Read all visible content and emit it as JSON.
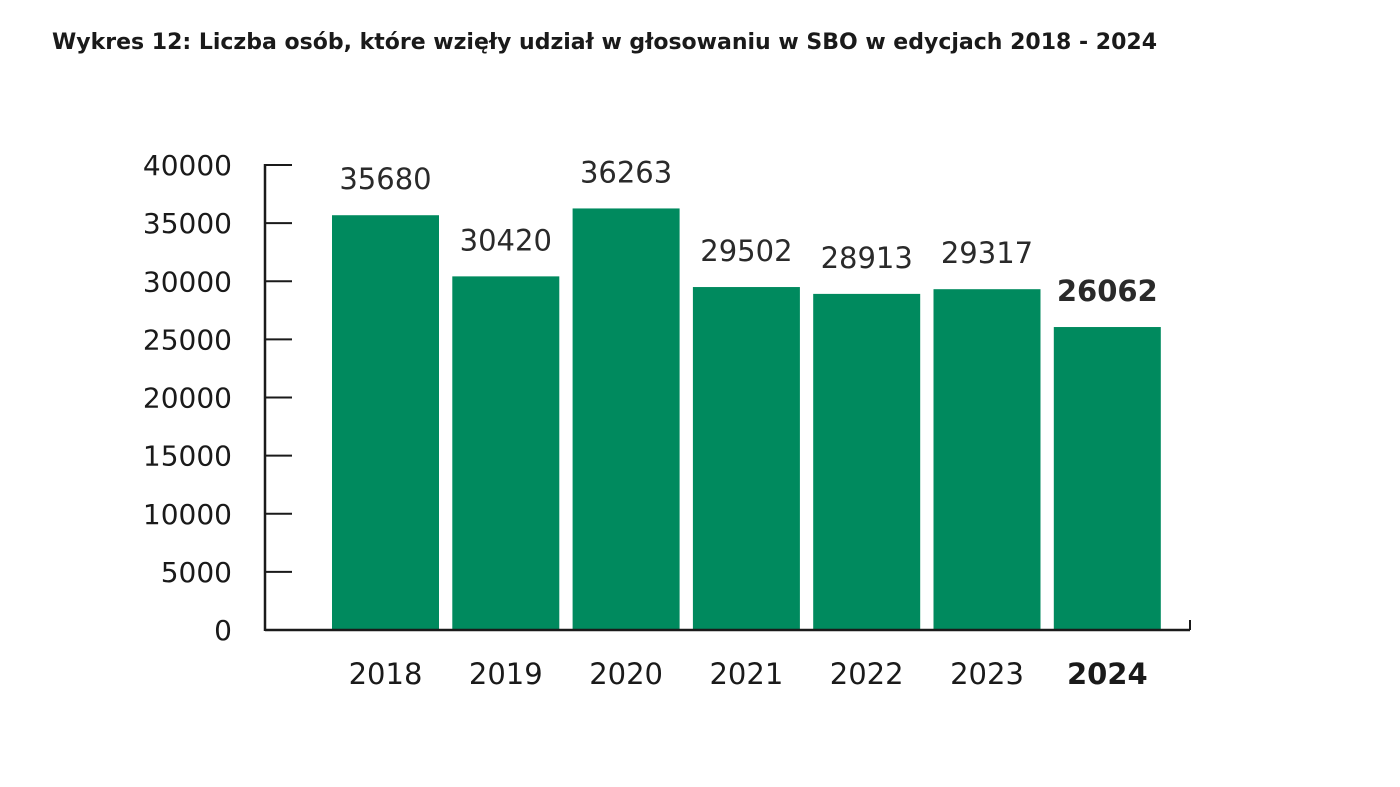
{
  "chart_data": {
    "type": "bar",
    "title": "Wykres 12: Liczba osób, które wzięły udział w głosowaniu w SBO w edycjach 2018 - 2024",
    "xlabel": "",
    "ylabel": "",
    "categories": [
      "2018",
      "2019",
      "2020",
      "2021",
      "2022",
      "2023",
      "2024"
    ],
    "values": [
      35680,
      30420,
      36263,
      29502,
      28913,
      29317,
      26062
    ],
    "value_labels": [
      "35680",
      "30420",
      "36263",
      "29502",
      "28913",
      "29317",
      "26062"
    ],
    "highlight_category": "2024",
    "ylim": [
      0,
      40000
    ],
    "yticks": [
      0,
      5000,
      10000,
      15000,
      20000,
      25000,
      30000,
      35000,
      40000
    ],
    "ytick_labels": [
      "0",
      "5000",
      "10000",
      "15000",
      "20000",
      "25000",
      "30000",
      "35000",
      "40000"
    ],
    "grid": false,
    "legend": "none",
    "colors": {
      "bar": "#008a5e",
      "axis": "#1a1a1a",
      "text": "#1a1a1a",
      "tick_10000": "#1f4a48"
    }
  }
}
